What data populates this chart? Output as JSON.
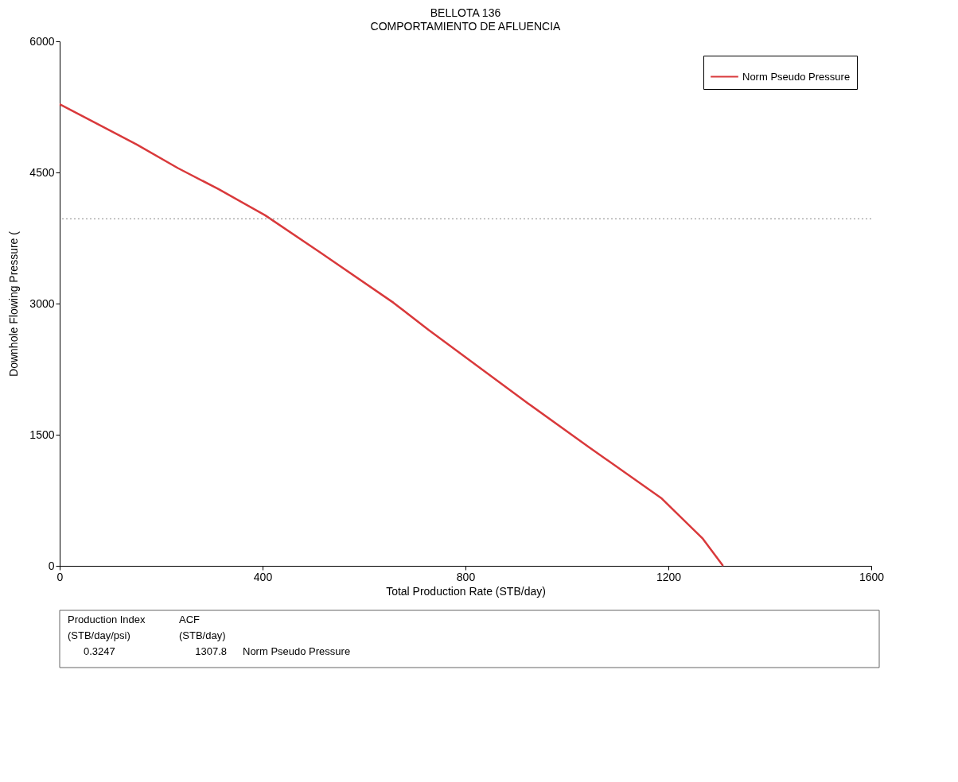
{
  "chart_data": {
    "type": "line",
    "title": "BELLOTA 136",
    "subtitle": "COMPORTAMIENTO DE AFLUENCIA",
    "xlabel": "Total Production Rate (STB/day)",
    "ylabel": "Downhole Flowing Pressure (",
    "x": [
      0,
      66,
      152,
      233,
      313,
      405,
      515,
      658,
      727,
      923,
      1043,
      1187,
      1268,
      1307.8
    ],
    "series": [
      {
        "name": "Norm Pseudo Pressure",
        "color": "#d9393b",
        "values": [
          5280,
          5080,
          4820,
          4550,
          4310,
          4010,
          3580,
          3010,
          2700,
          1860,
          1360,
          770,
          310,
          0
        ]
      }
    ],
    "xlim": [
      0,
      1600
    ],
    "xticks": [
      0,
      400,
      800,
      1200,
      1600
    ],
    "ylim": [
      0,
      6000
    ],
    "yticks": [
      0,
      1500,
      3000,
      4500,
      6000
    ],
    "ref_lines": [
      {
        "axis": "y",
        "value": 3970,
        "label": null,
        "color": "#888888",
        "line_style": "dotted"
      }
    ],
    "grid": false,
    "legend": "top right",
    "marker": "none",
    "line_style": "solid",
    "annotations": [
      "Production Index",
      "(STB/day/psi)",
      "0.3247",
      "ACF",
      "(STB/day)",
      "1307.8",
      "Norm Pseudo Pressure"
    ]
  }
}
